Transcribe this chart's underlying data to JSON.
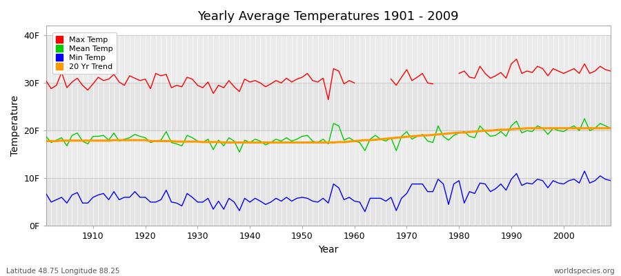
{
  "title": "Yearly Average Temperatures 1901 - 2009",
  "xlabel": "Year",
  "ylabel": "Temperature",
  "years_start": 1901,
  "years_end": 2009,
  "yticks": [
    0,
    10,
    20,
    30,
    40
  ],
  "ytick_labels": [
    "0F",
    "10F",
    "20F",
    "30F",
    "40F"
  ],
  "xticks": [
    1910,
    1920,
    1930,
    1940,
    1950,
    1960,
    1970,
    1980,
    1990,
    2000
  ],
  "ylim": [
    0,
    42
  ],
  "xlim": [
    1901,
    2009
  ],
  "legend_labels": [
    "Max Temp",
    "Mean Temp",
    "Min Temp",
    "20 Yr Trend"
  ],
  "line_colors": {
    "max": "#ff0000",
    "mean": "#00cc00",
    "min": "#0000ff",
    "trend": "#ff9900"
  },
  "legend_colors": [
    "#ff0000",
    "#00cc00",
    "#0000ff",
    "#ff9900"
  ],
  "bg_color": "#ffffff",
  "plot_bg_color": "#ffffff",
  "band_colors": [
    "#e8e8e8",
    "#f0f0f0"
  ],
  "grid_color": "#cccccc",
  "max_temp": [
    30.5,
    28.8,
    29.5,
    32.2,
    29.0,
    30.2,
    31.0,
    29.5,
    28.5,
    29.8,
    31.2,
    30.5,
    30.8,
    31.8,
    30.2,
    29.5,
    31.5,
    31.0,
    30.5,
    30.8,
    28.8,
    32.0,
    31.5,
    31.8,
    29.0,
    29.5,
    29.2,
    31.2,
    30.8,
    29.5,
    29.0,
    30.2,
    27.8,
    29.5,
    29.0,
    30.5,
    29.2,
    28.2,
    30.8,
    30.2,
    30.5,
    30.0,
    29.2,
    29.8,
    30.5,
    30.0,
    31.0,
    30.2,
    30.8,
    31.2,
    32.0,
    30.5,
    30.2,
    31.0,
    26.5,
    33.0,
    32.5,
    29.8,
    30.5,
    30.0,
    null,
    null,
    null,
    null,
    null,
    null,
    30.8,
    29.5,
    31.2,
    32.8,
    30.5,
    31.2,
    32.0,
    30.0,
    29.8,
    null,
    null,
    null,
    null,
    32.0,
    32.5,
    31.2,
    31.0,
    33.5,
    32.0,
    31.0,
    31.5,
    32.2,
    31.0,
    34.0,
    35.0,
    32.0,
    32.5,
    32.2,
    33.5,
    33.0,
    31.5,
    33.0,
    32.5,
    32.0,
    32.5,
    33.0,
    32.0,
    34.0,
    32.0,
    32.5,
    33.5,
    32.8,
    32.5
  ],
  "mean_temp": [
    18.8,
    17.5,
    18.0,
    18.5,
    16.8,
    19.0,
    19.5,
    17.8,
    17.2,
    18.8,
    18.8,
    19.0,
    18.0,
    19.5,
    17.8,
    18.2,
    18.5,
    19.2,
    18.8,
    18.5,
    17.5,
    17.8,
    18.0,
    19.8,
    17.5,
    17.2,
    16.8,
    19.0,
    18.5,
    17.8,
    17.5,
    18.2,
    16.0,
    18.0,
    16.8,
    18.5,
    17.8,
    15.5,
    18.0,
    17.5,
    18.2,
    17.8,
    17.0,
    17.5,
    18.2,
    17.8,
    18.5,
    17.8,
    18.2,
    18.8,
    19.0,
    17.8,
    17.5,
    18.2,
    17.2,
    21.5,
    21.0,
    18.0,
    18.5,
    17.8,
    17.5,
    15.8,
    18.2,
    19.0,
    18.2,
    17.8,
    18.5,
    15.8,
    18.8,
    19.8,
    18.2,
    18.8,
    19.2,
    17.8,
    17.5,
    21.0,
    18.8,
    18.0,
    19.0,
    19.5,
    19.8,
    18.8,
    18.5,
    21.0,
    19.8,
    18.8,
    19.0,
    19.8,
    18.8,
    21.0,
    22.0,
    19.5,
    20.0,
    19.8,
    21.0,
    20.5,
    19.2,
    20.5,
    20.0,
    19.8,
    20.5,
    21.0,
    20.0,
    22.5,
    20.0,
    20.5,
    21.5,
    21.0,
    20.5
  ],
  "min_temp": [
    6.8,
    5.0,
    5.5,
    6.0,
    4.8,
    6.5,
    7.0,
    4.8,
    4.8,
    6.0,
    6.5,
    6.8,
    5.5,
    7.2,
    5.5,
    6.0,
    6.0,
    7.2,
    6.0,
    6.0,
    5.0,
    5.0,
    5.5,
    7.5,
    5.0,
    4.8,
    4.2,
    6.8,
    6.0,
    5.0,
    5.0,
    5.8,
    3.5,
    5.2,
    3.5,
    5.8,
    5.0,
    3.2,
    5.8,
    5.0,
    5.8,
    5.2,
    4.5,
    5.0,
    5.8,
    5.2,
    6.0,
    5.2,
    5.8,
    6.0,
    5.8,
    5.2,
    5.0,
    5.8,
    4.8,
    8.8,
    8.0,
    5.5,
    6.0,
    5.2,
    5.0,
    3.0,
    5.8,
    5.8,
    5.8,
    5.2,
    6.0,
    3.2,
    5.8,
    6.8,
    8.8,
    8.8,
    8.8,
    7.2,
    7.2,
    9.8,
    8.8,
    4.5,
    8.8,
    9.5,
    4.8,
    7.2,
    6.8,
    9.0,
    8.8,
    7.2,
    7.8,
    8.8,
    7.5,
    9.8,
    11.0,
    8.5,
    9.0,
    8.8,
    9.8,
    9.5,
    8.0,
    9.5,
    9.0,
    8.8,
    9.5,
    9.8,
    9.0,
    11.5,
    9.0,
    9.5,
    10.5,
    9.8,
    9.5
  ],
  "trend_temp": [
    17.8,
    17.8,
    17.8,
    17.9,
    17.9,
    17.9,
    17.9,
    17.9,
    17.9,
    17.9,
    17.9,
    17.9,
    17.9,
    18.0,
    18.0,
    18.0,
    18.0,
    18.0,
    18.0,
    18.0,
    17.8,
    17.8,
    17.8,
    17.8,
    17.8,
    17.7,
    17.7,
    17.7,
    17.7,
    17.7,
    17.6,
    17.6,
    17.6,
    17.6,
    17.5,
    17.5,
    17.5,
    17.5,
    17.5,
    17.5,
    17.5,
    17.5,
    17.5,
    17.5,
    17.5,
    17.5,
    17.5,
    17.5,
    17.5,
    17.5,
    17.5,
    17.5,
    17.5,
    17.5,
    17.5,
    17.5,
    17.6,
    17.6,
    17.7,
    17.8,
    17.9,
    18.0,
    18.0,
    18.1,
    18.2,
    18.3,
    18.4,
    18.5,
    18.6,
    18.7,
    18.8,
    18.9,
    19.0,
    19.0,
    19.1,
    19.2,
    19.3,
    19.4,
    19.5,
    19.6,
    19.6,
    19.7,
    19.8,
    19.9,
    20.0,
    20.0,
    20.1,
    20.2,
    20.2,
    20.3,
    20.4,
    20.4,
    20.5,
    20.5,
    20.5,
    20.5,
    20.5,
    20.5,
    20.5,
    20.5,
    20.5,
    20.5,
    20.5,
    20.5,
    20.5,
    20.5,
    20.5,
    20.5,
    20.5
  ],
  "footer_left": "Latitude 48.75 Longitude 88.25",
  "footer_right": "worldspecies.org"
}
